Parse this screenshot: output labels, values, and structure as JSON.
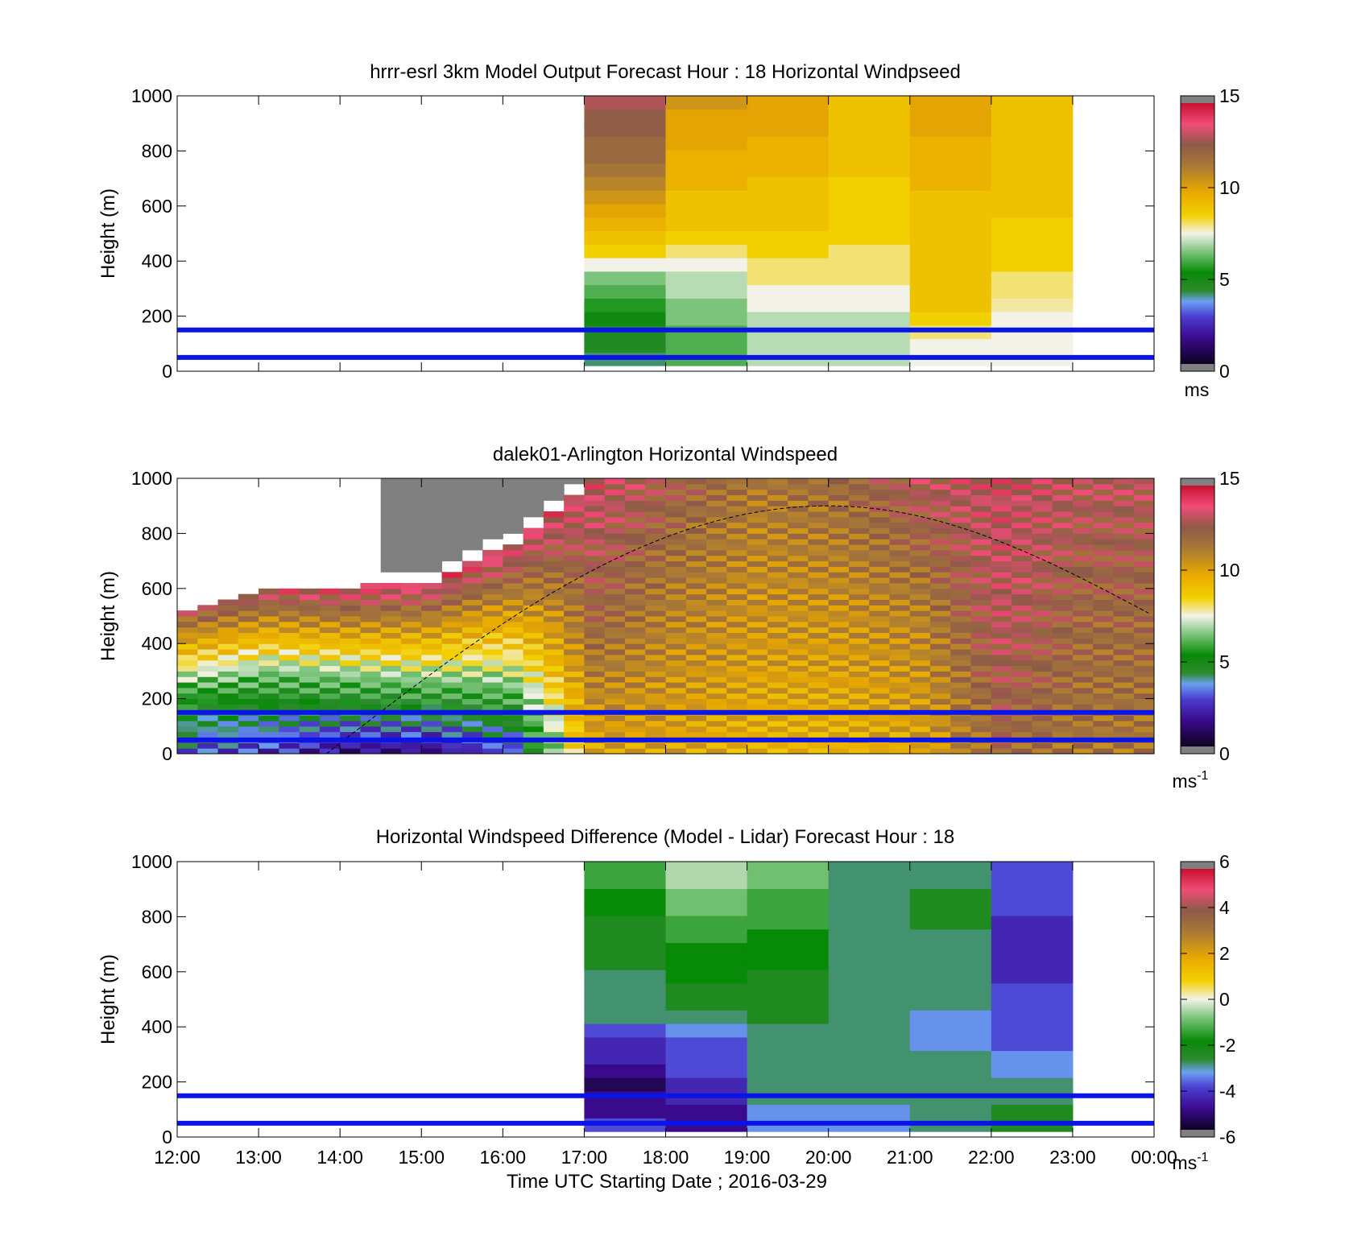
{
  "chart_data": [
    {
      "type": "heatmap",
      "title": "hrrr-esrl 3km Model Output   Forecast Hour : 18 Horizontal Windpseed",
      "ylabel": "Height (m)",
      "ylim": [
        0,
        1000
      ],
      "y_ticks": [
        "0",
        "200",
        "400",
        "600",
        "800",
        "1000"
      ],
      "xlim": [
        "12:00",
        "00:00"
      ],
      "colorbar": {
        "ticks": [
          "0",
          "5",
          "10",
          "15"
        ],
        "range": [
          0,
          15
        ],
        "unit": "ms"
      },
      "reference_lines_m": [
        50,
        150
      ],
      "columns": [
        {
          "start": "17:00",
          "end": "18:00",
          "values": [
            4,
            4.5,
            4.5,
            5,
            5.5,
            6,
            6.5,
            7.5,
            8.5,
            9,
            9.5,
            10,
            10.5,
            11,
            11.5,
            12,
            12,
            12.5,
            12.5,
            13
          ]
        },
        {
          "start": "18:00",
          "end": "19:00",
          "values": [
            6,
            6,
            6,
            6.5,
            6.5,
            7,
            7,
            7.5,
            8,
            8.5,
            9,
            9,
            9,
            9.5,
            9.5,
            9.5,
            10,
            10,
            10,
            10.5
          ]
        },
        {
          "start": "19:00",
          "end": "20:00",
          "values": [
            7,
            7,
            7,
            7,
            7.5,
            7.5,
            8,
            8,
            8.5,
            8.5,
            9,
            9,
            9,
            9,
            9.5,
            9.5,
            9.5,
            10,
            10,
            10
          ]
        },
        {
          "start": "20:00",
          "end": "21:00",
          "values": [
            7,
            7,
            7,
            7,
            7.5,
            7.5,
            8,
            8,
            8,
            8.5,
            8.5,
            8.5,
            8.5,
            8.5,
            9,
            9,
            9,
            9,
            9,
            9
          ]
        },
        {
          "start": "21:00",
          "end": "22:00",
          "values": [
            7.5,
            7.5,
            8,
            8.5,
            9,
            9,
            9,
            9,
            9,
            9,
            9,
            9,
            9,
            9.5,
            9.5,
            9.5,
            9.5,
            10,
            10,
            10
          ]
        },
        {
          "start": "22:00",
          "end": "23:00",
          "values": [
            7.5,
            7.5,
            7.5,
            7.5,
            7.8,
            8,
            8,
            8.5,
            8.5,
            8.5,
            8.5,
            9,
            9,
            9,
            9,
            9,
            9,
            9,
            9,
            9
          ]
        }
      ]
    },
    {
      "type": "heatmap",
      "title": "dalek01-Arlington  Horizontal Windspeed",
      "ylabel": "Height (m)",
      "ylim": [
        0,
        1000
      ],
      "y_ticks": [
        "0",
        "200",
        "400",
        "600",
        "800",
        "1000"
      ],
      "xlim": [
        "12:00",
        "00:00"
      ],
      "colorbar": {
        "ticks": [
          "0",
          "5",
          "10",
          "15"
        ],
        "range": [
          0,
          15
        ],
        "unit": "ms",
        "unit_exponent": "-1"
      },
      "reference_lines_m": [
        50,
        150
      ],
      "boundary_curve": {
        "start_time": "13:50",
        "start_height_m": 0,
        "peak_time": "20:00",
        "peak_height_m": 900,
        "end_time": "00:00",
        "end_height_m": 500
      },
      "lidar_profile_by_hour": [
        {
          "hour": "12:00",
          "low_speed": 3,
          "mid_speed": 6,
          "high_speed": 13,
          "data_top_m": 520
        },
        {
          "hour": "13:00",
          "low_speed": 2.5,
          "mid_speed": 6,
          "high_speed": 13.5,
          "data_top_m": 590
        },
        {
          "hour": "14:00",
          "low_speed": 1.5,
          "mid_speed": 6.5,
          "high_speed": 14,
          "data_top_m": 600
        },
        {
          "hour": "15:00",
          "low_speed": 1.5,
          "mid_speed": 7,
          "high_speed": 14,
          "data_top_m": 620
        },
        {
          "hour": "16:00",
          "low_speed": 3,
          "mid_speed": 8,
          "high_speed": 14,
          "data_top_m": 760
        },
        {
          "hour": "17:00",
          "low_speed": 10,
          "mid_speed": 12,
          "high_speed": 13.5,
          "data_top_m": 1000
        },
        {
          "hour": "18:00",
          "low_speed": 10,
          "mid_speed": 11,
          "high_speed": 12.5,
          "data_top_m": 1000
        },
        {
          "hour": "19:00",
          "low_speed": 9.5,
          "mid_speed": 10.5,
          "high_speed": 11.5,
          "data_top_m": 1000
        },
        {
          "hour": "20:00",
          "low_speed": 9.5,
          "mid_speed": 10.5,
          "high_speed": 12,
          "data_top_m": 1000
        },
        {
          "hour": "21:00",
          "low_speed": 10,
          "mid_speed": 11,
          "high_speed": 13,
          "data_top_m": 1000
        },
        {
          "hour": "22:00",
          "low_speed": 12,
          "mid_speed": 13,
          "high_speed": 13.5,
          "data_top_m": 1000
        },
        {
          "hour": "23:00",
          "low_speed": 11.5,
          "mid_speed": 12,
          "high_speed": 13,
          "data_top_m": 1000
        }
      ]
    },
    {
      "type": "heatmap",
      "title": "Horizontal Windspeed Difference (Model - Lidar) Forecast Hour : 18",
      "ylabel": "Height (m)",
      "xlabel": "Time UTC  Starting Date ; 2016-03-29",
      "ylim": [
        0,
        1000
      ],
      "y_ticks": [
        "0",
        "200",
        "400",
        "600",
        "800",
        "1000"
      ],
      "x_ticks": [
        "12:00",
        "13:00",
        "14:00",
        "15:00",
        "16:00",
        "17:00",
        "18:00",
        "19:00",
        "20:00",
        "21:00",
        "22:00",
        "23:00",
        "00:00"
      ],
      "colorbar": {
        "ticks": [
          "-6",
          "-4",
          "-2",
          "0",
          "2",
          "4",
          "6"
        ],
        "range": [
          -6,
          6
        ],
        "unit": "ms",
        "unit_exponent": "-1"
      },
      "reference_lines_m": [
        50,
        150
      ],
      "columns": [
        {
          "start": "17:00",
          "end": "18:00",
          "values": [
            -4,
            -5,
            -5,
            -5.5,
            -5,
            -4.5,
            -4.5,
            -4,
            -3,
            -3,
            -3,
            -3,
            -2.5,
            -2.5,
            -2.5,
            -2.5,
            -2,
            -2,
            -1.5,
            -1.5
          ]
        },
        {
          "start": "18:00",
          "end": "19:00",
          "values": [
            -5,
            -5,
            -4.5,
            -4.5,
            -4,
            -4,
            -4,
            -3.5,
            -3,
            -2.5,
            -2.5,
            -2,
            -2,
            -2,
            -1.5,
            -1.5,
            -1,
            -1,
            -0.5,
            -0.5
          ]
        },
        {
          "start": "19:00",
          "end": "20:00",
          "values": [
            -3.5,
            -3.5,
            -3,
            -3,
            -3,
            -3,
            -3,
            -3,
            -2.5,
            -2.5,
            -2.5,
            -2.5,
            -2,
            -2,
            -2,
            -1.5,
            -1.5,
            -1.5,
            -1,
            -1
          ]
        },
        {
          "start": "20:00",
          "end": "21:00",
          "values": [
            -3.5,
            -3.5,
            -3,
            -3,
            -3,
            -3,
            -3,
            -3,
            -3,
            -3,
            -3,
            -3,
            -3,
            -3,
            -3,
            -3,
            -3,
            -3,
            -3,
            -3
          ]
        },
        {
          "start": "21:00",
          "end": "22:00",
          "values": [
            -3,
            -3,
            -3,
            -3,
            -3,
            -3,
            -3.5,
            -3.5,
            -3.5,
            -3,
            -3,
            -3,
            -3,
            -3,
            -3,
            -2.5,
            -2.5,
            -2.5,
            -3,
            -3
          ]
        },
        {
          "start": "22:00",
          "end": "23:00",
          "values": [
            -2.5,
            -2.5,
            -3,
            -3,
            -3.5,
            -3.5,
            -4,
            -4,
            -4,
            -4,
            -4,
            -4.5,
            -4.5,
            -4.5,
            -4.5,
            -4.5,
            -4,
            -4,
            -4,
            -4
          ]
        }
      ]
    }
  ]
}
